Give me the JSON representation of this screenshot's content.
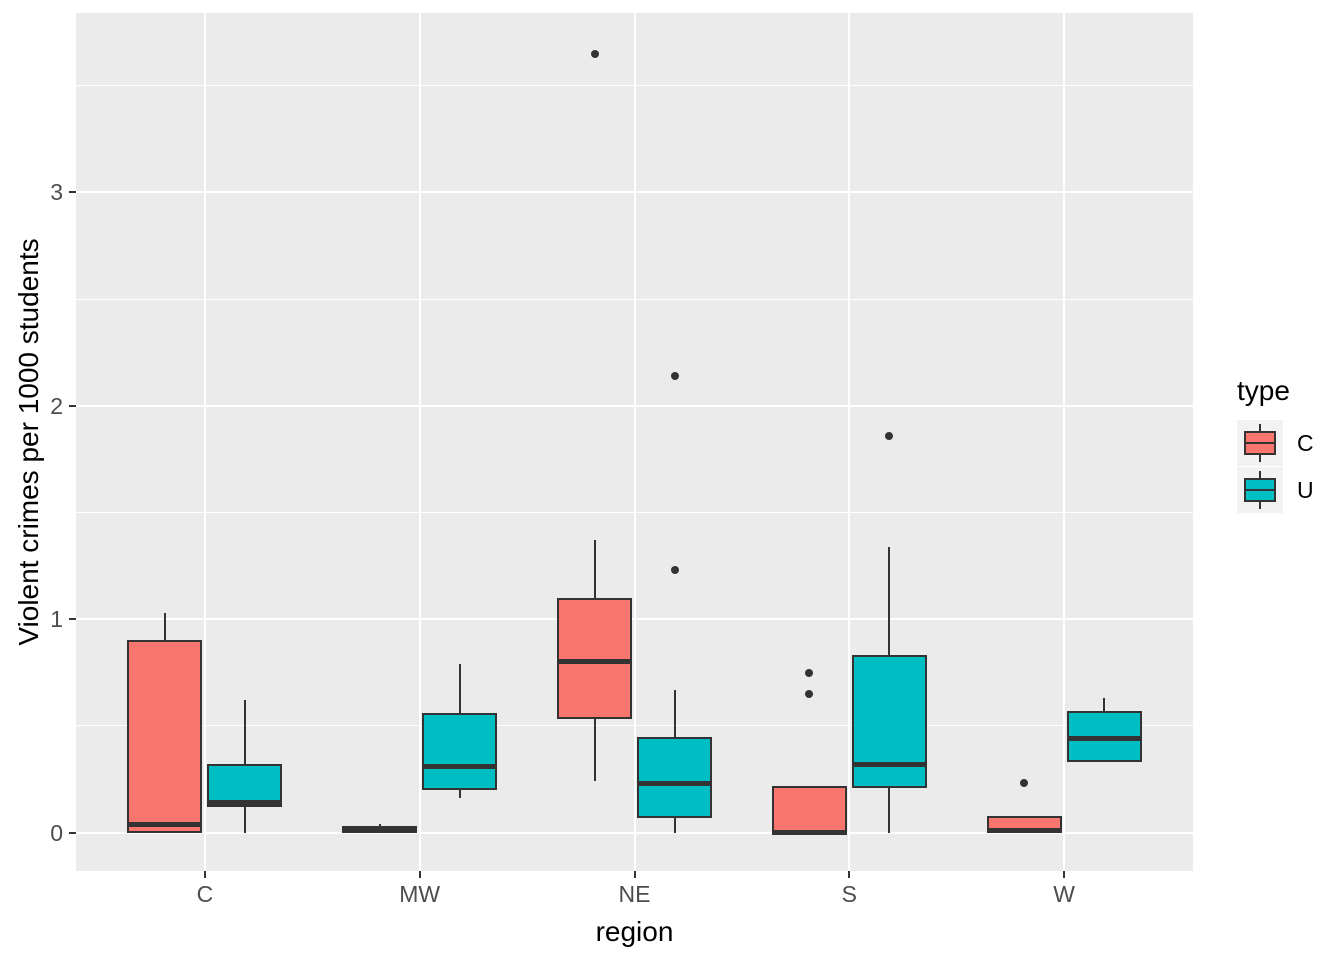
{
  "chart_data": {
    "type": "boxplot",
    "title": "",
    "xlabel": "region",
    "ylabel": "Violent crimes per 1000 students",
    "x_categories": [
      "C",
      "MW",
      "NE",
      "S",
      "W"
    ],
    "y_ticks": [
      0,
      1,
      2,
      3
    ],
    "y_minor_ticks": [
      0.5,
      1.5,
      2.5,
      3.5
    ],
    "ylim": [
      -0.18,
      3.84
    ],
    "grid": "on",
    "legend": {
      "title": "type",
      "position": "right",
      "entries": [
        {
          "label": "C",
          "color": "#F8766D"
        },
        {
          "label": "U",
          "color": "#00BFC4"
        }
      ]
    },
    "series": [
      {
        "name": "C",
        "color": "#F8766D",
        "boxes": [
          {
            "category": "C",
            "min": 0,
            "q1": 0,
            "median": 0.04,
            "q3": 0.9,
            "max": 1.03,
            "outliers": []
          },
          {
            "category": "MW",
            "min": 0,
            "q1": 0,
            "median": 0.01,
            "q3": 0.03,
            "max": 0.04,
            "outliers": []
          },
          {
            "category": "NE",
            "min": 0.24,
            "q1": 0.53,
            "median": 0.8,
            "q3": 1.1,
            "max": 1.37,
            "outliers": [
              3.65
            ]
          },
          {
            "category": "S",
            "min": 0,
            "q1": 0,
            "median": 0,
            "q3": 0.22,
            "max": 0.22,
            "outliers": [
              0.65,
              0.75
            ]
          },
          {
            "category": "W",
            "min": 0,
            "q1": 0,
            "median": 0.01,
            "q3": 0.08,
            "max": 0.08,
            "outliers": [
              0.23
            ]
          }
        ]
      },
      {
        "name": "U",
        "color": "#00BFC4",
        "boxes": [
          {
            "category": "C",
            "min": 0,
            "q1": 0.12,
            "median": 0.14,
            "q3": 0.32,
            "max": 0.62,
            "outliers": []
          },
          {
            "category": "MW",
            "min": 0.16,
            "q1": 0.2,
            "median": 0.31,
            "q3": 0.56,
            "max": 0.79,
            "outliers": []
          },
          {
            "category": "NE",
            "min": 0,
            "q1": 0.07,
            "median": 0.23,
            "q3": 0.45,
            "max": 0.67,
            "outliers": [
              1.23,
              2.14
            ]
          },
          {
            "category": "S",
            "min": 0,
            "q1": 0.21,
            "median": 0.32,
            "q3": 0.83,
            "max": 1.34,
            "outliers": [
              1.86
            ]
          },
          {
            "category": "W",
            "min": 0.33,
            "q1": 0.33,
            "median": 0.44,
            "q3": 0.57,
            "max": 0.63,
            "outliers": []
          }
        ]
      }
    ],
    "colors": {
      "panel_background": "#EBEBEB",
      "gridline": "#FFFFFF",
      "box_stroke": "#333333",
      "tick_label": "#4D4D4D",
      "tick_mark": "#333333",
      "legend_key_background": "#F2F2F2"
    }
  }
}
